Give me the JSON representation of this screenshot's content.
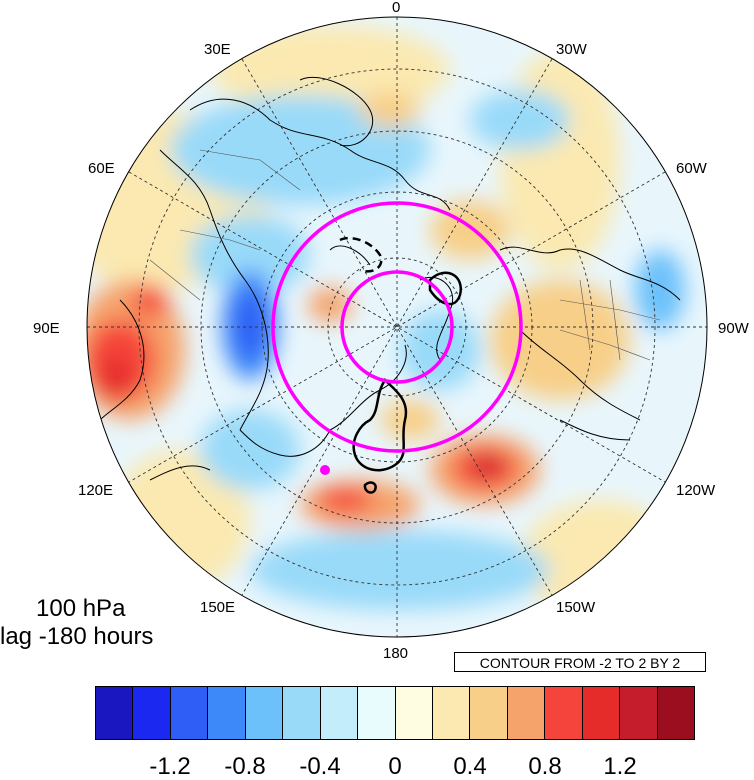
{
  "map": {
    "projection": "north polar stereographic",
    "longitude_labels": [
      "0",
      "30W",
      "60W",
      "90W",
      "120W",
      "150W",
      "180",
      "150E",
      "120E",
      "90E",
      "60E",
      "30E"
    ],
    "features": [
      "coastlines",
      "country borders",
      "shaded anomaly field",
      "black contour lines",
      "magenta rings",
      "magenta marker"
    ],
    "colors": {
      "ring": "#ff00ff",
      "contour": "#000000",
      "grid": "#333333"
    }
  },
  "info": {
    "level": "100 hPa",
    "lag": "lag -180 hours"
  },
  "contour_note": "CONTOUR FROM -2 TO 2 BY 2",
  "colorbar": {
    "colors": [
      "#1a16c0",
      "#1a28f0",
      "#2e5ef5",
      "#3e89fa",
      "#6cc1fb",
      "#99daf9",
      "#c4edfb",
      "#e8fcfe",
      "#fefde1",
      "#fbe9b1",
      "#f8cf88",
      "#f6a36b",
      "#f5443b",
      "#e62b2b",
      "#c51d2b",
      "#9b0e1f"
    ],
    "labels": [
      "-1.2",
      "-0.8",
      "-0.4",
      "0",
      "0.4",
      "0.8",
      "1.2"
    ]
  }
}
